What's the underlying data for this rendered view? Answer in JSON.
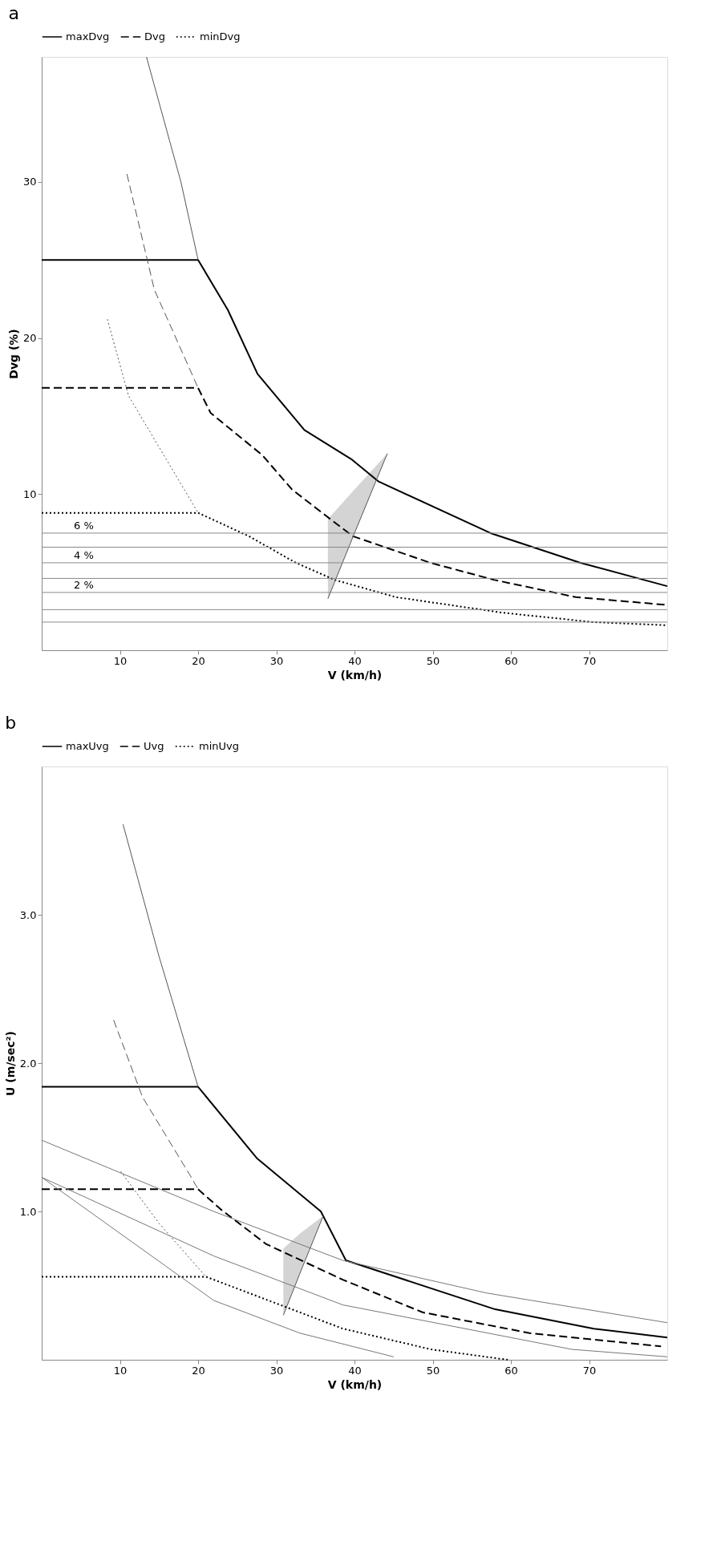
{
  "chart_data": [
    {
      "type": "line",
      "title": "a",
      "xlabel": "V (km/h)",
      "ylabel": "Dvg (%)",
      "xlim": [
        0,
        80
      ],
      "xticks": [
        10,
        20,
        30,
        40,
        50,
        60,
        70
      ],
      "ylim": [
        0,
        38
      ],
      "yticks": [
        10,
        20,
        30
      ],
      "grid": false,
      "legend": "top",
      "marker": "none",
      "series": [
        {
          "name": "maxDvg",
          "color": "#000000",
          "line_style": "solid",
          "x": [
            0,
            20,
            20,
            23.8,
            27.6,
            33.6,
            39.7,
            43.1,
            57.4,
            68.9,
            80
          ],
          "values": [
            25,
            25,
            25,
            21.8,
            17.7,
            14.1,
            12.2,
            10.8,
            7.5,
            5.6,
            4.1
          ]
        },
        {
          "name": "Dvg",
          "color": "#000000",
          "line_style": "dashed",
          "x": [
            0,
            20,
            21.6,
            28.2,
            32,
            36.9,
            39.8,
            49.7,
            57.9,
            68.3,
            80
          ],
          "values": [
            16.8,
            16.8,
            15.2,
            12.5,
            10.3,
            8.4,
            7.3,
            5.6,
            4.5,
            3.4,
            2.9
          ]
        },
        {
          "name": "minDvg",
          "color": "#000000",
          "line_style": "dotted",
          "x": [
            0,
            20,
            26.5,
            32.5,
            37.5,
            45.3,
            59,
            70.5,
            80
          ],
          "values": [
            8.8,
            8.8,
            7.3,
            5.6,
            4.5,
            3.4,
            2.4,
            1.8,
            1.6
          ]
        },
        {
          "color": "#555555",
          "line_style": "solid",
          "x": [
            13.4,
            17.8,
            20
          ],
          "values": [
            38,
            30,
            25
          ]
        },
        {
          "color": "#555555",
          "line_style": "dashed",
          "x": [
            10.9,
            14.4,
            20
          ],
          "values": [
            30.5,
            23.1,
            16.8
          ]
        },
        {
          "color": "#555555",
          "line_style": "dotted",
          "x": [
            8.4,
            11.1,
            20
          ],
          "values": [
            21.2,
            16.3,
            8.8
          ]
        },
        {
          "color": "#555555",
          "line_style": "solid",
          "x": [
            36.6,
            40,
            44.2
          ],
          "values": [
            3.3,
            7.5,
            12.6
          ],
          "lower": [
            3.3,
            7.5,
            12.6
          ],
          "upper": [
            8.4,
            10.3,
            12.6
          ]
        }
      ],
      "ref_lines": [
        {
          "axis": "y",
          "value": 7.5
        },
        {
          "axis": "y",
          "value": 6.6
        },
        {
          "axis": "y",
          "value": 5.6
        },
        {
          "axis": "y",
          "value": 4.6
        },
        {
          "axis": "y",
          "value": 3.7
        },
        {
          "axis": "y",
          "value": 2.6
        },
        {
          "axis": "y",
          "value": 1.8
        }
      ],
      "annotations": [
        {
          "text": "6 %",
          "y": 7.5
        },
        {
          "text": "4 %",
          "y": 5.6
        },
        {
          "text": "2 %",
          "y": 3.7
        }
      ]
    },
    {
      "type": "line",
      "title": "b",
      "xlabel": "V (km/h)",
      "ylabel": "U (m/sec²)",
      "xlim": [
        0,
        80
      ],
      "xticks": [
        10,
        20,
        30,
        40,
        50,
        60,
        70
      ],
      "ylim": [
        0,
        4
      ],
      "yticks": [
        {
          "value": 1,
          "label": "1.0"
        },
        {
          "value": 2,
          "label": "2.0"
        },
        {
          "value": 3,
          "label": "3.0"
        }
      ],
      "grid": false,
      "legend": "top",
      "marker": "none",
      "series": [
        {
          "name": "maxUvg",
          "color": "#000000",
          "line_style": "solid",
          "x": [
            0,
            20,
            20,
            27.5,
            35.7,
            38.9,
            58,
            70.6,
            80
          ],
          "values": [
            1.84,
            1.84,
            1.84,
            1.36,
            1.0,
            0.67,
            0.34,
            0.21,
            0.15
          ]
        },
        {
          "name": "Uvg",
          "color": "#000000",
          "line_style": "dashed",
          "x": [
            0,
            20,
            23,
            28.7,
            38.5,
            48.7,
            62.4,
            79.2
          ],
          "values": [
            1.15,
            1.15,
            1.01,
            0.78,
            0.54,
            0.32,
            0.18,
            0.09
          ]
        },
        {
          "name": "minUvg",
          "color": "#000000",
          "line_style": "dotted",
          "x": [
            0,
            21,
            27.5,
            38.5,
            49.8,
            59.6
          ],
          "values": [
            0.56,
            0.56,
            0.43,
            0.21,
            0.07,
            0
          ]
        },
        {
          "color": "#555555",
          "line_style": "solid",
          "x": [
            10.4,
            15,
            20
          ],
          "values": [
            3.61,
            2.72,
            1.84
          ]
        },
        {
          "color": "#555555",
          "line_style": "dashed",
          "x": [
            9.2,
            12.9,
            18.9,
            20
          ],
          "values": [
            2.29,
            1.77,
            1.25,
            1.15
          ]
        },
        {
          "color": "#555555",
          "line_style": "dotted",
          "x": [
            10.1,
            15,
            21
          ],
          "values": [
            1.27,
            0.92,
            0.56
          ]
        },
        {
          "color": "#777777",
          "line_style": "solid",
          "x": [
            0,
            22,
            38.5,
            56.9,
            80
          ],
          "values": [
            1.48,
            1.0,
            0.67,
            0.45,
            0.25
          ]
        },
        {
          "color": "#777777",
          "line_style": "solid",
          "x": [
            0,
            22,
            38.5,
            67.8,
            80
          ],
          "values": [
            1.23,
            0.7,
            0.37,
            0.07,
            0.02
          ]
        },
        {
          "color": "#777777",
          "line_style": "solid",
          "x": [
            0,
            22,
            33,
            45
          ],
          "values": [
            1.23,
            0.4,
            0.18,
            0.02
          ]
        },
        {
          "color": "#555555",
          "line_style": "solid",
          "x": [
            30.9,
            33,
            36
          ],
          "values": [
            0.3,
            0.58,
            0.97
          ],
          "lower": [
            0.3,
            0.58,
            0.97
          ],
          "upper": [
            0.75,
            0.85,
            0.97
          ]
        }
      ]
    }
  ]
}
